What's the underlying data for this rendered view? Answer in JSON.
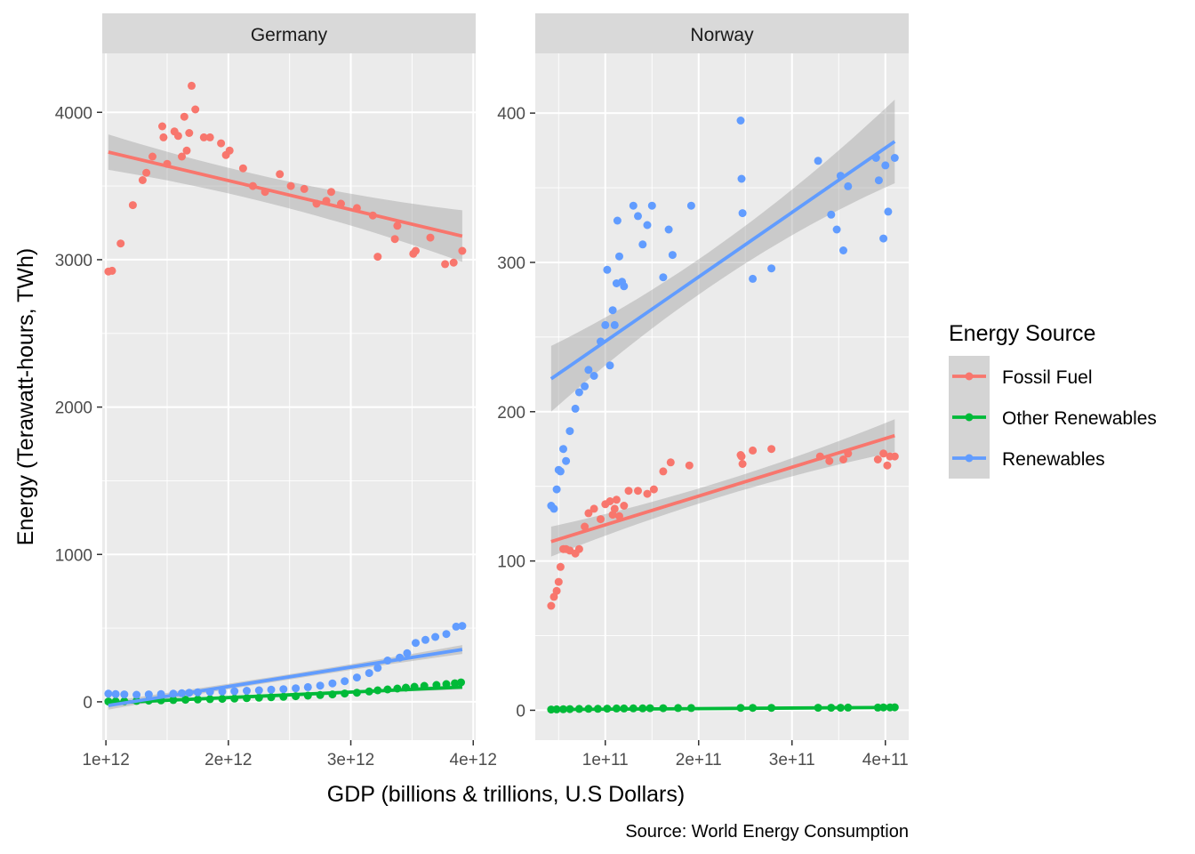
{
  "chart_data": {
    "type": "scatter",
    "facets": [
      "Germany",
      "Norway"
    ],
    "xlabel": "GDP (billions & trillions, U.S Dollars)",
    "ylabel": "Energy (Terawatt-hours, TWh)",
    "caption": "Source: World Energy Consumption",
    "legend": {
      "title": "Energy Source",
      "position": "right",
      "entries": [
        "Fossil Fuel",
        "Other Renewables",
        "Renewables"
      ]
    },
    "colors": {
      "Fossil Fuel": "#F8766D",
      "Other Renewables": "#00BA38",
      "Renewables": "#619CFF"
    },
    "trend": "linear fit with confidence band",
    "panels": [
      {
        "name": "Germany",
        "xlim": [
          970000000000.0,
          4020000000000.0
        ],
        "ylim": [
          -260,
          4400
        ],
        "xticks": [
          1000000000000.0,
          2000000000000.0,
          3000000000000.0,
          4000000000000.0
        ],
        "xtick_labels": [
          "1e+12",
          "2e+12",
          "3e+12",
          "4e+12"
        ],
        "yticks": [
          0,
          1000,
          2000,
          3000,
          4000
        ],
        "ytick_labels": [
          "0",
          "1000",
          "2000",
          "3000",
          "4000"
        ],
        "series": [
          {
            "name": "Fossil Fuel",
            "x": [
              1020000000000.0,
              1050000000000.0,
              1120000000000.0,
              1220000000000.0,
              1300000000000.0,
              1330000000000.0,
              1380000000000.0,
              1460000000000.0,
              1470000000000.0,
              1500000000000.0,
              1560000000000.0,
              1590000000000.0,
              1620000000000.0,
              1640000000000.0,
              1660000000000.0,
              1680000000000.0,
              1700000000000.0,
              1730000000000.0,
              1800000000000.0,
              1850000000000.0,
              1940000000000.0,
              1980000000000.0,
              2010000000000.0,
              2120000000000.0,
              2200000000000.0,
              2300000000000.0,
              2420000000000.0,
              2510000000000.0,
              2620000000000.0,
              2720000000000.0,
              2800000000000.0,
              2840000000000.0,
              2920000000000.0,
              3050000000000.0,
              3180000000000.0,
              3220000000000.0,
              3360000000000.0,
              3380000000000.0,
              3510000000000.0,
              3530000000000.0,
              3650000000000.0,
              3770000000000.0,
              3840000000000.0,
              3910000000000.0
            ],
            "y": [
              2920,
              2925,
              3110,
              3370,
              3540,
              3590,
              3700,
              3905,
              3830,
              3650,
              3870,
              3840,
              3700,
              3970,
              3740,
              3860,
              4180,
              4020,
              3830,
              3830,
              3790,
              3710,
              3740,
              3620,
              3500,
              3460,
              3580,
              3500,
              3480,
              3380,
              3400,
              3460,
              3380,
              3350,
              3300,
              3020,
              3140,
              3230,
              3040,
              3060,
              3150,
              2970,
              2980,
              3060
            ]
          },
          {
            "name": "Other Renewables",
            "x": [
              1020000000000.0,
              1080000000000.0,
              1150000000000.0,
              1250000000000.0,
              1350000000000.0,
              1450000000000.0,
              1550000000000.0,
              1650000000000.0,
              1750000000000.0,
              1850000000000.0,
              1950000000000.0,
              2050000000000.0,
              2150000000000.0,
              2250000000000.0,
              2350000000000.0,
              2450000000000.0,
              2550000000000.0,
              2650000000000.0,
              2750000000000.0,
              2850000000000.0,
              2950000000000.0,
              3050000000000.0,
              3150000000000.0,
              3220000000000.0,
              3300000000000.0,
              3380000000000.0,
              3450000000000.0,
              3520000000000.0,
              3600000000000.0,
              3700000000000.0,
              3780000000000.0,
              3850000000000.0,
              3900000000000.0
            ],
            "y": [
              2,
              3,
              4,
              6,
              8,
              10,
              12,
              14,
              16,
              18,
              20,
              22,
              25,
              28,
              31,
              34,
              38,
              42,
              46,
              50,
              56,
              62,
              70,
              78,
              84,
              90,
              96,
              102,
              108,
              114,
              120,
              126,
              132
            ]
          },
          {
            "name": "Renewables",
            "x": [
              1020000000000.0,
              1080000000000.0,
              1150000000000.0,
              1250000000000.0,
              1350000000000.0,
              1450000000000.0,
              1550000000000.0,
              1620000000000.0,
              1680000000000.0,
              1750000000000.0,
              1850000000000.0,
              1950000000000.0,
              2050000000000.0,
              2150000000000.0,
              2250000000000.0,
              2350000000000.0,
              2450000000000.0,
              2550000000000.0,
              2650000000000.0,
              2750000000000.0,
              2850000000000.0,
              2950000000000.0,
              3050000000000.0,
              3150000000000.0,
              3220000000000.0,
              3300000000000.0,
              3400000000000.0,
              3460000000000.0,
              3530000000000.0,
              3610000000000.0,
              3690000000000.0,
              3780000000000.0,
              3860000000000.0,
              3910000000000.0
            ],
            "y": [
              55,
              52,
              50,
              48,
              50,
              52,
              55,
              58,
              62,
              65,
              68,
              70,
              72,
              75,
              78,
              82,
              86,
              92,
              100,
              110,
              125,
              140,
              165,
              195,
              230,
              280,
              300,
              330,
              400,
              420,
              440,
              460,
              510,
              515
            ]
          }
        ],
        "fits": [
          {
            "series": "Fossil Fuel",
            "x_range": [
              1020000000000.0,
              3910000000000.0
            ],
            "y_fit": [
              3730,
              3160
            ],
            "band_halfwidth": [
              120,
              90,
              175
            ]
          },
          {
            "series": "Other Renewables",
            "x_range": [
              1020000000000.0,
              3910000000000.0
            ],
            "y_fit": [
              -8,
              100
            ],
            "band_halfwidth": [
              14,
              9,
              16
            ]
          },
          {
            "series": "Renewables",
            "x_range": [
              1020000000000.0,
              3910000000000.0
            ],
            "y_fit": [
              -25,
              355
            ],
            "band_halfwidth": [
              28,
              18,
              30
            ]
          }
        ]
      },
      {
        "name": "Norway",
        "xlim": [
          25000000000.0,
          425000000000.0
        ],
        "ylim": [
          -20,
          440
        ],
        "xticks": [
          100000000000.0,
          200000000000.0,
          300000000000.0,
          400000000000.0
        ],
        "xtick_labels": [
          "1e+11",
          "2e+11",
          "3e+11",
          "4e+11"
        ],
        "yticks": [
          0,
          100,
          200,
          300,
          400
        ],
        "ytick_labels": [
          "0",
          "100",
          "200",
          "300",
          "400"
        ],
        "series": [
          {
            "name": "Fossil Fuel",
            "x": [
              42000000000.0,
              45000000000.0,
              48000000000.0,
              50000000000.0,
              52000000000.0,
              55000000000.0,
              58000000000.0,
              62000000000.0,
              68000000000.0,
              72000000000.0,
              78000000000.0,
              82000000000.0,
              88000000000.0,
              95000000000.0,
              100000000000.0,
              105000000000.0,
              108000000000.0,
              110000000000.0,
              112000000000.0,
              115000000000.0,
              120000000000.0,
              125000000000.0,
              135000000000.0,
              145000000000.0,
              152000000000.0,
              162000000000.0,
              170000000000.0,
              190000000000.0,
              245000000000.0,
              246000000000.0,
              247000000000.0,
              258000000000.0,
              278000000000.0,
              330000000000.0,
              340000000000.0,
              355000000000.0,
              360000000000.0,
              392000000000.0,
              398000000000.0,
              402000000000.0,
              405000000000.0,
              410000000000.0
            ],
            "y": [
              70,
              76,
              80,
              86,
              96,
              108,
              108,
              107,
              105,
              108,
              123,
              132,
              135,
              128,
              138,
              140,
              131,
              135,
              141,
              130,
              137,
              147,
              147,
              145,
              148,
              160,
              166,
              164,
              171,
              170,
              165,
              174,
              175,
              170,
              167,
              168,
              172,
              168,
              172,
              164,
              170,
              170
            ]
          },
          {
            "name": "Other Renewables",
            "x": [
              42000000000.0,
              48000000000.0,
              55000000000.0,
              62000000000.0,
              72000000000.0,
              82000000000.0,
              92000000000.0,
              102000000000.0,
              112000000000.0,
              120000000000.0,
              130000000000.0,
              140000000000.0,
              148000000000.0,
              162000000000.0,
              178000000000.0,
              192000000000.0,
              245000000000.0,
              258000000000.0,
              278000000000.0,
              328000000000.0,
              342000000000.0,
              352000000000.0,
              360000000000.0,
              392000000000.0,
              398000000000.0,
              405000000000.0,
              410000000000.0
            ],
            "y": [
              0.5,
              0.6,
              0.7,
              0.8,
              0.9,
              1,
              1,
              1.1,
              1.2,
              1.2,
              1.3,
              1.3,
              1.4,
              1.4,
              1.5,
              1.5,
              1.6,
              1.6,
              1.6,
              1.7,
              1.7,
              1.7,
              1.8,
              1.8,
              1.9,
              1.9,
              2
            ]
          },
          {
            "name": "Renewables",
            "x": [
              42000000000.0,
              45000000000.0,
              48000000000.0,
              50000000000.0,
              52000000000.0,
              55000000000.0,
              58000000000.0,
              62000000000.0,
              68000000000.0,
              72000000000.0,
              78000000000.0,
              82000000000.0,
              88000000000.0,
              95000000000.0,
              100000000000.0,
              102000000000.0,
              105000000000.0,
              108000000000.0,
              110000000000.0,
              112000000000.0,
              113000000000.0,
              115000000000.0,
              118000000000.0,
              120000000000.0,
              130000000000.0,
              135000000000.0,
              140000000000.0,
              145000000000.0,
              150000000000.0,
              162000000000.0,
              168000000000.0,
              172000000000.0,
              192000000000.0,
              245000000000.0,
              246000000000.0,
              247000000000.0,
              258000000000.0,
              278000000000.0,
              328000000000.0,
              342000000000.0,
              348000000000.0,
              352000000000.0,
              355000000000.0,
              360000000000.0,
              390000000000.0,
              393000000000.0,
              398000000000.0,
              400000000000.0,
              403000000000.0,
              410000000000.0
            ],
            "y": [
              137,
              135,
              148,
              161,
              160,
              175,
              167,
              187,
              202,
              213,
              217,
              228,
              224,
              247,
              258,
              295,
              231,
              268,
              258,
              286,
              328,
              304,
              287,
              284,
              338,
              331,
              312,
              325,
              338,
              290,
              322,
              305,
              338,
              395,
              356,
              333,
              289,
              296,
              368,
              332,
              322,
              358,
              308,
              351,
              370,
              355,
              316,
              365,
              334,
              370
            ]
          }
        ],
        "fits": [
          {
            "series": "Fossil Fuel",
            "x_range": [
              42000000000.0,
              410000000000.0
            ],
            "y_fit": [
              113,
              184
            ],
            "band_halfwidth": [
              10,
              5,
              11
            ]
          },
          {
            "series": "Other Renewables",
            "x_range": [
              42000000000.0,
              410000000000.0
            ],
            "y_fit": [
              0.5,
              1.9
            ],
            "band_halfwidth": [
              0.4,
              0.2,
              0.4
            ]
          },
          {
            "series": "Renewables",
            "x_range": [
              42000000000.0,
              410000000000.0
            ],
            "y_fit": [
              222,
              381
            ],
            "band_halfwidth": [
              22,
              12,
              28
            ]
          }
        ]
      }
    ]
  }
}
